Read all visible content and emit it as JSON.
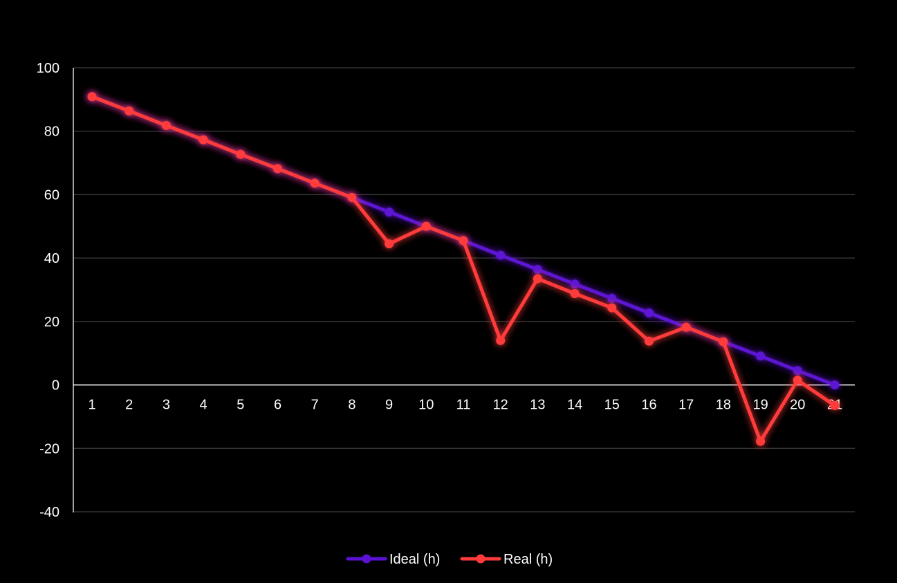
{
  "chart_data": {
    "type": "line",
    "categories": [
      "1",
      "2",
      "3",
      "4",
      "5",
      "6",
      "7",
      "8",
      "9",
      "10",
      "11",
      "12",
      "13",
      "14",
      "15",
      "16",
      "17",
      "18",
      "19",
      "20",
      "21"
    ],
    "ylim": [
      -40,
      100
    ],
    "yticks": [
      100,
      80,
      60,
      40,
      20,
      0,
      -20,
      -40
    ],
    "grid": true,
    "legend_position": "bottom",
    "series": [
      {
        "name": "Ideal (h)",
        "color": "#5b12d4",
        "values": [
          90.9,
          86.4,
          81.8,
          77.3,
          72.7,
          68.2,
          63.6,
          59.1,
          54.5,
          50.0,
          45.5,
          40.9,
          36.4,
          31.8,
          27.3,
          22.7,
          18.2,
          13.6,
          9.1,
          4.5,
          0.0
        ]
      },
      {
        "name": "Real (h)",
        "color": "#ff3b3b",
        "values": [
          90.9,
          86.4,
          81.8,
          77.3,
          72.7,
          68.2,
          63.6,
          59.1,
          44.5,
          50.0,
          45.5,
          14.0,
          33.5,
          28.8,
          24.3,
          13.8,
          18.2,
          13.6,
          -17.8,
          1.5,
          -6.5
        ]
      }
    ]
  }
}
